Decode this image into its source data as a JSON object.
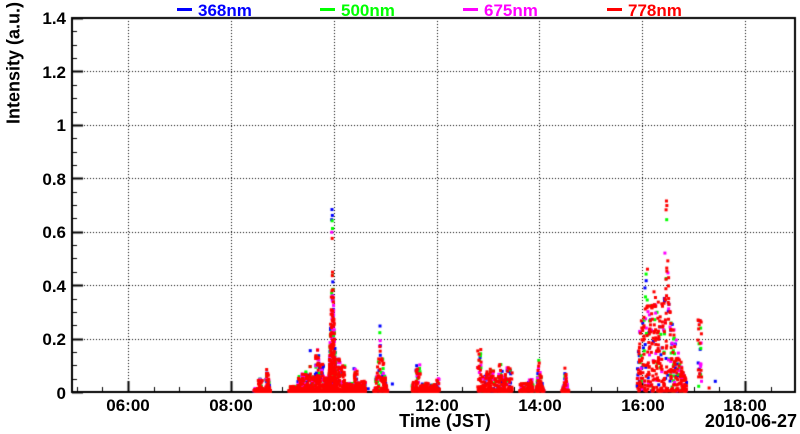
{
  "page": {
    "background": "#ffffff"
  },
  "legend": {
    "entries": [
      {
        "label": "368nm",
        "color": "#0000ff"
      },
      {
        "label": "500nm",
        "color": "#00ff00"
      },
      {
        "label": "675nm",
        "color": "#ff00ff"
      },
      {
        "label": "778nm",
        "color": "#ff0000"
      }
    ]
  },
  "chart_data": {
    "type": "scatter",
    "title": "",
    "xlabel": "Time (JST)",
    "ylabel": "Intensity (a.u.)",
    "date_label": "2010-06-27",
    "xlim": [
      4.91,
      18.97
    ],
    "ylim": [
      0,
      1.4
    ],
    "x_major_ticks": [
      6,
      8,
      10,
      12,
      14,
      16,
      18
    ],
    "x_ticklabels": [
      "06:00",
      "08:00",
      "10:00",
      "12:00",
      "14:00",
      "16:00",
      "18:00"
    ],
    "x_minor_step_hours": 0.5,
    "y_major_ticks": [
      0,
      0.2,
      0.4,
      0.6,
      0.8,
      1,
      1.2,
      1.4
    ],
    "y_ticklabels": [
      "0",
      "0.2",
      "0.4",
      "0.6",
      "0.8",
      "1",
      "1.2",
      "1.4"
    ],
    "y_minor_step": 0.05,
    "grid": "dotted-at-major-ticks",
    "legend_position": "top",
    "marker_size_px": 3,
    "series": [
      {
        "name": "368nm",
        "color": "#0000ff"
      },
      {
        "name": "500nm",
        "color": "#00ff00"
      },
      {
        "name": "675nm",
        "color": "#ff00ff"
      },
      {
        "name": "778nm",
        "color": "#ff0000"
      }
    ],
    "bursts_note": "Intermittent bursts of scattered points; all four wavelengths overlap, 778nm (red) densest near zero. t in decimal hours JST, peak in a.u.",
    "bursts": [
      {
        "t0": 8.45,
        "t1": 8.63,
        "profile": "cols",
        "peak": 0.055,
        "n_red": 55,
        "n_other": 8
      },
      {
        "t0": 8.64,
        "t1": 8.77,
        "profile": "spike",
        "tp": 8.7,
        "peak": 0.13,
        "n_red": 55,
        "n_other": 10
      },
      {
        "t0": 9.13,
        "t1": 9.29,
        "profile": "cols",
        "peak": 0.085,
        "n_red": 55,
        "n_other": 9
      },
      {
        "t0": 9.3,
        "t1": 9.55,
        "profile": "cols",
        "peak": 0.19,
        "n_red": 130,
        "n_other": 24
      },
      {
        "t0": 9.56,
        "t1": 9.89,
        "profile": "cols",
        "peak": 0.21,
        "n_red": 170,
        "n_other": 32
      },
      {
        "t0": 9.89,
        "t1": 10.06,
        "profile": "spike",
        "tp": 9.97,
        "peak": 0.68,
        "n_red": 330,
        "n_other": 70
      },
      {
        "t0": 10.06,
        "t1": 10.62,
        "profile": "cols",
        "peak": 0.13,
        "n_red": 230,
        "n_other": 38
      },
      {
        "t0": 10.78,
        "t1": 11.05,
        "profile": "spike",
        "tp": 10.9,
        "peak": 0.25,
        "n_red": 90,
        "n_other": 13
      },
      {
        "t0": 11.52,
        "t1": 12.05,
        "profile": "cols",
        "peak": 0.11,
        "n_red": 180,
        "n_other": 28
      },
      {
        "t0": 12.8,
        "t1": 13.47,
        "profile": "cols",
        "peak": 0.19,
        "n_red": 200,
        "n_other": 34
      },
      {
        "t0": 13.62,
        "t1": 13.88,
        "profile": "cols",
        "peak": 0.05,
        "n_red": 70,
        "n_other": 8
      },
      {
        "t0": 13.93,
        "t1": 14.09,
        "profile": "spike",
        "tp": 14.0,
        "peak": 0.17,
        "n_red": 60,
        "n_other": 12
      },
      {
        "t0": 14.44,
        "t1": 14.57,
        "profile": "spike",
        "tp": 14.5,
        "peak": 0.12,
        "n_red": 45,
        "n_other": 9
      },
      {
        "t0": 15.9,
        "t1": 16.86,
        "profile": "env",
        "peak": 0.72,
        "env": [
          [
            15.9,
            0.1
          ],
          [
            15.95,
            0.38
          ],
          [
            16.02,
            0.3
          ],
          [
            16.08,
            0.5
          ],
          [
            16.15,
            0.42
          ],
          [
            16.22,
            0.55
          ],
          [
            16.3,
            0.45
          ],
          [
            16.38,
            0.55
          ],
          [
            16.44,
            0.68
          ],
          [
            16.49,
            0.72
          ],
          [
            16.54,
            0.55
          ],
          [
            16.62,
            0.4
          ],
          [
            16.7,
            0.3
          ],
          [
            16.78,
            0.15
          ],
          [
            16.86,
            0.08
          ]
        ],
        "n_red": 300,
        "n_other": 55
      },
      {
        "t0": 17.08,
        "t1": 17.16,
        "profile": "bar",
        "lo": 0.02,
        "peak": 0.27,
        "n_red": 14,
        "n_other": 5
      }
    ],
    "extra_points": [
      {
        "t": 9.966,
        "v": 0.683,
        "series": "368nm"
      },
      {
        "t": 9.973,
        "v": 0.661,
        "series": "368nm"
      },
      {
        "t": 9.96,
        "v": 0.645,
        "series": "368nm"
      },
      {
        "t": 9.969,
        "v": 0.641,
        "series": "500nm"
      },
      {
        "t": 9.976,
        "v": 0.612,
        "series": "500nm"
      },
      {
        "t": 9.962,
        "v": 0.598,
        "series": "675nm"
      },
      {
        "t": 9.97,
        "v": 0.575,
        "series": "778nm"
      },
      {
        "t": 16.47,
        "v": 0.715,
        "series": "778nm"
      },
      {
        "t": 16.478,
        "v": 0.698,
        "series": "778nm"
      },
      {
        "t": 16.463,
        "v": 0.682,
        "series": "778nm"
      },
      {
        "t": 16.475,
        "v": 0.645,
        "series": "500nm"
      },
      {
        "t": 16.44,
        "v": 0.52,
        "series": "675nm"
      },
      {
        "t": 10.9,
        "v": 0.247,
        "series": "368nm"
      },
      {
        "t": 10.896,
        "v": 0.222,
        "series": "500nm"
      },
      {
        "t": 10.903,
        "v": 0.192,
        "series": "675nm"
      },
      {
        "t": 10.899,
        "v": 0.17,
        "series": "778nm"
      },
      {
        "t": 10.67,
        "v": 0.012,
        "series": "368nm"
      },
      {
        "t": 11.14,
        "v": 0.03,
        "series": "368nm"
      },
      {
        "t": 17.3,
        "v": 0.015,
        "series": "778nm"
      },
      {
        "t": 17.42,
        "v": 0.04,
        "series": "368nm"
      }
    ]
  }
}
